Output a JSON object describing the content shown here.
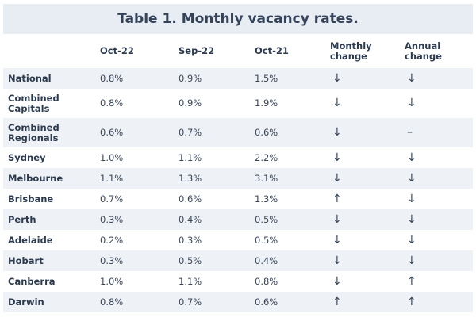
{
  "title": "Table 1. Monthly vacancy rates.",
  "columns": [
    "",
    "Oct-22",
    "Sep-22",
    "Oct-21",
    "Monthly change",
    "Annual change"
  ],
  "rows": [
    {
      "region": "National",
      "oct22": "0.8%",
      "sep22": "0.9%",
      "oct21": "1.5%",
      "monthly": "↓",
      "annual": "↓"
    },
    {
      "region": "Combined Capitals",
      "oct22": "0.8%",
      "sep22": "0.9%",
      "oct21": "1.9%",
      "monthly": "↓",
      "annual": "↓"
    },
    {
      "region": "Combined Regionals",
      "oct22": "0.6%",
      "sep22": "0.7%",
      "oct21": "0.6%",
      "monthly": "↓",
      "annual": "–"
    },
    {
      "region": "Sydney",
      "oct22": "1.0%",
      "sep22": "1.1%",
      "oct21": "2.2%",
      "monthly": "↓",
      "annual": "↓"
    },
    {
      "region": "Melbourne",
      "oct22": "1.1%",
      "sep22": "1.3%",
      "oct21": "3.1%",
      "monthly": "↓",
      "annual": "↓"
    },
    {
      "region": "Brisbane",
      "oct22": "0.7%",
      "sep22": "0.6%",
      "oct21": "1.3%",
      "monthly": "↑",
      "annual": "↓"
    },
    {
      "region": "Perth",
      "oct22": "0.3%",
      "sep22": "0.4%",
      "oct21": "0.5%",
      "monthly": "↓",
      "annual": "↓"
    },
    {
      "region": "Adelaide",
      "oct22": "0.2%",
      "sep22": "0.3%",
      "oct21": "0.5%",
      "monthly": "↓",
      "annual": "↓"
    },
    {
      "region": "Hobart",
      "oct22": "0.3%",
      "sep22": "0.5%",
      "oct21": "0.4%",
      "monthly": "↓",
      "annual": "↓"
    },
    {
      "region": "Canberra",
      "oct22": "1.0%",
      "sep22": "1.1%",
      "oct21": "0.8%",
      "monthly": "↓",
      "annual": "↑"
    },
    {
      "region": "Darwin",
      "oct22": "0.8%",
      "sep22": "0.7%",
      "oct21": "0.6%",
      "monthly": "↑",
      "annual": "↑"
    }
  ],
  "colors": {
    "title_band": "#e8edf3",
    "stripe": "#eef1f5",
    "text": "#2b3a4e"
  }
}
